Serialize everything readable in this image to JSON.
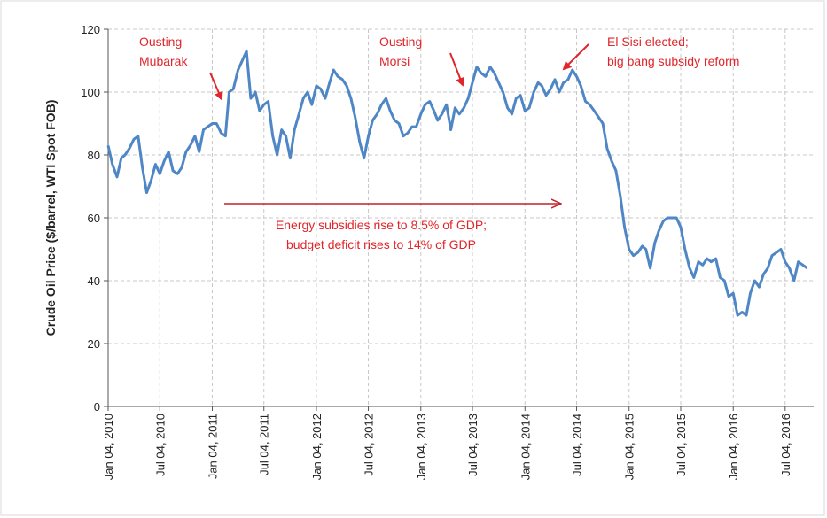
{
  "chart_data": {
    "type": "line",
    "y_label": "Crude Oil Price ($/barrel, WTI Spot FOB)",
    "xlim": [
      "2010-01-04",
      "2016-10-12"
    ],
    "xticks": [
      {
        "value": "2010-01-04",
        "label": "Jan 04, 2010"
      },
      {
        "value": "2010-07-04",
        "label": "Jul 04, 2010"
      },
      {
        "value": "2011-01-04",
        "label": "Jan 04, 2011"
      },
      {
        "value": "2011-07-04",
        "label": "Jul 04, 2011"
      },
      {
        "value": "2012-01-04",
        "label": "Jan 04, 2012"
      },
      {
        "value": "2012-07-04",
        "label": "Jul 04, 2012"
      },
      {
        "value": "2013-01-04",
        "label": "Jan 04, 2013"
      },
      {
        "value": "2013-07-04",
        "label": "Jul 04, 2013"
      },
      {
        "value": "2014-01-04",
        "label": "Jan 04, 2014"
      },
      {
        "value": "2014-07-04",
        "label": "Jul 04, 2014"
      },
      {
        "value": "2015-01-04",
        "label": "Jan 04, 2015"
      },
      {
        "value": "2015-07-04",
        "label": "Jul 04, 2015"
      },
      {
        "value": "2016-01-04",
        "label": "Jan 04, 2016"
      },
      {
        "value": "2016-07-04",
        "label": "Jul 04, 2016"
      }
    ],
    "ylim": [
      0,
      120
    ],
    "yticks": [
      0,
      20,
      40,
      60,
      80,
      100,
      120
    ],
    "grid": true,
    "annotations": [
      {
        "lines": [
          "Ousting",
          "Mubarak"
        ]
      },
      {
        "lines": [
          "Ousting",
          "Morsi"
        ]
      },
      {
        "lines": [
          "El Sisi elected;",
          "big bang subsidy reform"
        ]
      },
      {
        "lines": [
          "Energy subsidies rise to 8.5% of GDP;",
          "budget deficit rises to 14% of GDP"
        ]
      }
    ],
    "x": [
      "2010-01-04",
      "2010-01-19",
      "2010-02-04",
      "2010-02-19",
      "2010-03-04",
      "2010-03-19",
      "2010-04-04",
      "2010-04-19",
      "2010-05-04",
      "2010-05-19",
      "2010-06-04",
      "2010-06-19",
      "2010-07-04",
      "2010-07-19",
      "2010-08-04",
      "2010-08-19",
      "2010-09-04",
      "2010-09-19",
      "2010-10-04",
      "2010-10-19",
      "2010-11-04",
      "2010-11-19",
      "2010-12-04",
      "2010-12-19",
      "2011-01-04",
      "2011-01-19",
      "2011-02-04",
      "2011-02-19",
      "2011-03-04",
      "2011-03-19",
      "2011-04-04",
      "2011-04-19",
      "2011-05-04",
      "2011-05-19",
      "2011-06-04",
      "2011-06-19",
      "2011-07-04",
      "2011-07-19",
      "2011-08-04",
      "2011-08-19",
      "2011-09-04",
      "2011-09-19",
      "2011-10-04",
      "2011-10-19",
      "2011-11-04",
      "2011-11-19",
      "2011-12-04",
      "2011-12-19",
      "2012-01-04",
      "2012-01-19",
      "2012-02-04",
      "2012-02-19",
      "2012-03-04",
      "2012-03-19",
      "2012-04-04",
      "2012-04-19",
      "2012-05-04",
      "2012-05-19",
      "2012-06-04",
      "2012-06-19",
      "2012-07-04",
      "2012-07-19",
      "2012-08-04",
      "2012-08-19",
      "2012-09-04",
      "2012-09-19",
      "2012-10-04",
      "2012-10-19",
      "2012-11-04",
      "2012-11-19",
      "2012-12-04",
      "2012-12-19",
      "2013-01-04",
      "2013-01-19",
      "2013-02-04",
      "2013-02-19",
      "2013-03-04",
      "2013-03-19",
      "2013-04-04",
      "2013-04-19",
      "2013-05-04",
      "2013-05-19",
      "2013-06-04",
      "2013-06-19",
      "2013-07-04",
      "2013-07-19",
      "2013-08-04",
      "2013-08-19",
      "2013-09-04",
      "2013-09-19",
      "2013-10-04",
      "2013-10-19",
      "2013-11-04",
      "2013-11-19",
      "2013-12-04",
      "2013-12-19",
      "2014-01-04",
      "2014-01-19",
      "2014-02-04",
      "2014-02-19",
      "2014-03-04",
      "2014-03-19",
      "2014-04-04",
      "2014-04-19",
      "2014-05-04",
      "2014-05-19",
      "2014-06-04",
      "2014-06-19",
      "2014-07-04",
      "2014-07-19",
      "2014-08-04",
      "2014-08-19",
      "2014-09-04",
      "2014-09-19",
      "2014-10-04",
      "2014-10-19",
      "2014-11-04",
      "2014-11-19",
      "2014-12-04",
      "2014-12-19",
      "2015-01-04",
      "2015-01-19",
      "2015-02-04",
      "2015-02-19",
      "2015-03-04",
      "2015-03-19",
      "2015-04-04",
      "2015-04-19",
      "2015-05-04",
      "2015-05-19",
      "2015-06-04",
      "2015-06-19",
      "2015-07-04",
      "2015-07-19",
      "2015-08-04",
      "2015-08-19",
      "2015-09-04",
      "2015-09-19",
      "2015-10-04",
      "2015-10-19",
      "2015-11-04",
      "2015-11-19",
      "2015-12-04",
      "2015-12-19",
      "2016-01-04",
      "2016-01-19",
      "2016-02-04",
      "2016-02-19",
      "2016-03-04",
      "2016-03-19",
      "2016-04-04",
      "2016-04-19",
      "2016-05-04",
      "2016-05-19",
      "2016-06-04",
      "2016-06-19",
      "2016-07-04",
      "2016-07-19",
      "2016-08-04",
      "2016-08-19",
      "2016-09-04",
      "2016-09-19"
    ],
    "series": [
      {
        "name": "WTI",
        "color": "#4f86c6",
        "values": [
          83,
          77,
          73,
          79,
          80,
          82,
          85,
          86,
          76,
          68,
          72,
          77,
          74,
          78,
          81,
          75,
          74,
          76,
          81,
          83,
          86,
          81,
          88,
          89,
          90,
          90,
          87,
          86,
          100,
          101,
          107,
          110,
          113,
          98,
          100,
          94,
          96,
          97,
          86,
          80,
          88,
          86,
          79,
          88,
          93,
          98,
          100,
          96,
          102,
          101,
          98,
          103,
          107,
          105,
          104,
          102,
          98,
          92,
          84,
          79,
          86,
          91,
          93,
          96,
          98,
          94,
          91,
          90,
          86,
          87,
          89,
          89,
          93,
          96,
          97,
          94,
          91,
          93,
          96,
          88,
          95,
          93,
          95,
          98,
          103,
          108,
          106,
          105,
          108,
          106,
          103,
          100,
          95,
          93,
          98,
          99,
          94,
          95,
          100,
          103,
          102,
          99,
          101,
          104,
          100,
          103,
          104,
          107,
          105,
          102,
          97,
          96,
          94,
          92,
          90,
          82,
          78,
          75,
          67,
          57,
          50,
          48,
          49,
          51,
          50,
          44,
          52,
          56,
          59,
          60,
          60,
          60,
          57,
          50,
          44,
          41,
          46,
          45,
          47,
          46,
          47,
          41,
          40,
          35,
          36,
          29,
          30,
          29,
          36,
          40,
          38,
          42,
          44,
          48,
          49,
          50,
          46,
          44,
          40,
          46,
          45,
          44
        ]
      }
    ]
  }
}
